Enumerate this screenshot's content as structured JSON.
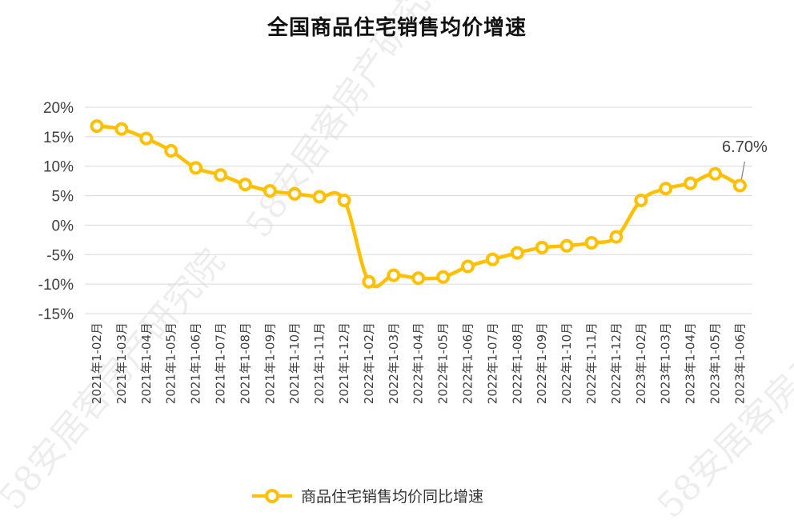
{
  "chart_data": {
    "type": "line",
    "title": "全国商品住宅销售均价增速",
    "x": [
      "2021年1-02月",
      "2021年1-03月",
      "2021年1-04月",
      "2021年1-05月",
      "2021年1-06月",
      "2021年1-07月",
      "2021年1-08月",
      "2021年1-09月",
      "2021年1-10月",
      "2021年1-11月",
      "2021年1-12月",
      "2022年1-02月",
      "2022年1-03月",
      "2022年1-04月",
      "2022年1-05月",
      "2022年1-06月",
      "2022年1-07月",
      "2022年1-08月",
      "2022年1-09月",
      "2022年1-10月",
      "2022年1-11月",
      "2022年1-12月",
      "2023年1-02月",
      "2023年1-03月",
      "2023年1-04月",
      "2023年1-05月",
      "2023年1-06月"
    ],
    "series": [
      {
        "name": "商品住宅销售均价同比增速",
        "color": "#FFC000",
        "values": [
          16.8,
          16.3,
          14.7,
          12.6,
          9.7,
          8.5,
          6.9,
          5.8,
          5.3,
          4.8,
          4.2,
          -9.6,
          -8.5,
          -9.0,
          -8.8,
          -7.0,
          -5.8,
          -4.7,
          -3.8,
          -3.5,
          -3.0,
          -2.0,
          4.2,
          6.2,
          7.1,
          8.7,
          6.7
        ]
      }
    ],
    "ylim": [
      -15,
      20
    ],
    "yticks": [
      "20%",
      "15%",
      "10%",
      "5%",
      "0%",
      "-5%",
      "-10%",
      "-15%"
    ],
    "ytick_values": [
      20,
      15,
      10,
      5,
      0,
      -5,
      -10,
      -15
    ],
    "annotations": [
      {
        "label": "6.70%",
        "index": 26
      }
    ],
    "grid": true,
    "legend": "bottom",
    "xlabel": "",
    "ylabel": ""
  },
  "watermark": {
    "text": "58安居客房产研究院"
  }
}
